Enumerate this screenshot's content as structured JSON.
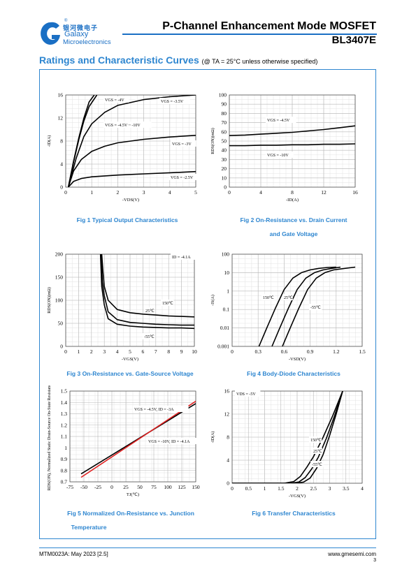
{
  "header": {
    "logo_cn": "银河微电子",
    "logo_en_1": "Galaxy",
    "logo_en_2": "Microelectronics",
    "registered": "®",
    "title": "P-Channel Enhancement Mode MOSFET",
    "part_number": "BL3407E",
    "accent_color": "#1a6fc4"
  },
  "section": {
    "title": "Ratings and Characteristic Curves",
    "note": "(@ TA = 25°C unless otherwise specified)"
  },
  "figures": [
    {
      "caption_1": "Fig 1    Typical Output Characteristics",
      "caption_2": ""
    },
    {
      "caption_1": "Fig 2    On-Resistance vs. Drain Current",
      "caption_2": "and Gate Voltage"
    },
    {
      "caption_1": "Fig 3    On-Resistance vs. Gate-Source Voltage",
      "caption_2": ""
    },
    {
      "caption_1": "Fig 4    Body-Diode Characteristics",
      "caption_2": ""
    },
    {
      "caption_1": "Fig 5    Normalized On-Resistance vs. Junction",
      "caption_2": "Temperature"
    },
    {
      "caption_1": "Fig 6    Transfer Characteristics",
      "caption_2": ""
    }
  ],
  "chart_data": [
    {
      "type": "line",
      "id": "fig1",
      "xlabel": "-VDS(V)",
      "ylabel": "-ID(A)",
      "xlim": [
        0,
        5
      ],
      "ylim": [
        0,
        16
      ],
      "xticks": [
        0,
        1,
        2,
        3,
        4,
        5
      ],
      "yticks": [
        0,
        4,
        8,
        12,
        16
      ],
      "grid": true,
      "annotations": [
        "VGS = -4V",
        "VGS = -3.5V",
        "VGS = -4.5V ~ -10V",
        "VGS = -3V",
        "VGS = -2.5V"
      ],
      "series": [
        {
          "x": [
            0.1,
            0.3,
            0.5,
            0.7,
            0.9,
            1.1
          ],
          "y": [
            0,
            4.5,
            8.5,
            12,
            14.8,
            16
          ]
        },
        {
          "x": [
            0.1,
            0.3,
            0.5,
            0.7,
            0.9,
            1.2
          ],
          "y": [
            0,
            4.3,
            8.2,
            11.5,
            14,
            16
          ]
        },
        {
          "x": [
            0.1,
            0.4,
            0.7,
            1,
            1.5,
            2,
            3,
            4,
            5
          ],
          "y": [
            0,
            5,
            8.8,
            11,
            13,
            14.2,
            15.2,
            15.7,
            16
          ]
        },
        {
          "x": [
            0.1,
            0.3,
            0.6,
            1,
            1.5,
            2,
            3,
            4,
            5
          ],
          "y": [
            0,
            2.8,
            4.8,
            6.2,
            7.1,
            7.7,
            8.3,
            8.7,
            9
          ]
        },
        {
          "x": [
            0.1,
            0.3,
            0.6,
            1,
            2,
            3,
            4,
            5
          ],
          "y": [
            0,
            1,
            1.5,
            1.8,
            2.1,
            2.3,
            2.5,
            2.7
          ]
        }
      ]
    },
    {
      "type": "line",
      "id": "fig2",
      "xlabel": "-ID(A)",
      "ylabel": "RDS(ON)(mΩ)",
      "xlim": [
        0,
        16
      ],
      "ylim": [
        0,
        100
      ],
      "xticks": [
        0,
        4,
        8,
        12,
        16
      ],
      "yticks": [
        0,
        10,
        20,
        30,
        40,
        50,
        60,
        70,
        80,
        90,
        100
      ],
      "grid": true,
      "annotations": [
        "VGS = -4.5V",
        "VGS = -10V"
      ],
      "series": [
        {
          "x": [
            0,
            2,
            4,
            6,
            8,
            10,
            12,
            14,
            16
          ],
          "y": [
            56,
            56.5,
            57.5,
            58.5,
            59.5,
            61,
            62.5,
            64.5,
            66.5
          ]
        },
        {
          "x": [
            0,
            2,
            4,
            6,
            8,
            10,
            12,
            14,
            16
          ],
          "y": [
            45,
            45,
            45.5,
            45.5,
            46,
            46,
            46.5,
            46.5,
            47
          ]
        }
      ]
    },
    {
      "type": "line",
      "id": "fig3",
      "xlabel": "-VGS(V)",
      "ylabel": "RDS(ON)(mΩ)",
      "xlim": [
        0,
        10
      ],
      "ylim": [
        0,
        200
      ],
      "xticks": [
        0,
        1,
        2,
        3,
        4,
        5,
        6,
        7,
        8,
        9,
        10
      ],
      "yticks": [
        0,
        50,
        100,
        150,
        200
      ],
      "grid": true,
      "annotations": [
        "ID = -4.1A",
        "150℃",
        "25℃",
        "-55℃"
      ],
      "series": [
        {
          "x": [
            2.8,
            2.9,
            3,
            3.3,
            4,
            5,
            6,
            7,
            8,
            9,
            10
          ],
          "y": [
            200,
            160,
            130,
            100,
            80,
            73,
            70,
            68,
            66,
            65,
            64
          ]
        },
        {
          "x": [
            2.75,
            2.85,
            3,
            3.3,
            4,
            5,
            6,
            7,
            8,
            9,
            10
          ],
          "y": [
            200,
            140,
            110,
            75,
            58,
            52,
            50,
            48,
            47,
            46,
            46
          ]
        },
        {
          "x": [
            2.7,
            2.8,
            3,
            3.3,
            4,
            5,
            6,
            7,
            8,
            9,
            10
          ],
          "y": [
            200,
            130,
            90,
            60,
            48,
            44,
            42,
            41,
            40,
            40,
            39
          ]
        }
      ]
    },
    {
      "type": "line",
      "id": "fig4",
      "xlabel": "-VSD(V)",
      "ylabel": "-IS(A)",
      "xlim": [
        0,
        1.5
      ],
      "ylim": [
        0.001,
        100
      ],
      "yscale": "log",
      "xticks": [
        0,
        0.3,
        0.6,
        0.9,
        1.2,
        1.5
      ],
      "yticks": [
        0.001,
        0.01,
        0.1,
        1,
        10,
        100
      ],
      "ytick_labels": [
        "0.001",
        "0.01",
        "0.1",
        "1",
        "10",
        "100"
      ],
      "grid": true,
      "annotations": [
        "150℃",
        "25℃",
        "-55℃"
      ],
      "series": [
        {
          "x": [
            0.31,
            0.4,
            0.5,
            0.6,
            0.7,
            0.8,
            0.9,
            1.0,
            1.1,
            1.2
          ],
          "y": [
            0.001,
            0.01,
            0.12,
            1.2,
            5,
            10,
            14,
            17,
            19,
            20
          ]
        },
        {
          "x": [
            0.46,
            0.55,
            0.65,
            0.75,
            0.85,
            0.95,
            1.05,
            1.15,
            1.25
          ],
          "y": [
            0.001,
            0.01,
            0.12,
            1.2,
            5,
            10,
            14,
            17,
            20
          ]
        },
        {
          "x": [
            0.58,
            0.67,
            0.77,
            0.87,
            0.97,
            1.07,
            1.17,
            1.3,
            1.42
          ],
          "y": [
            0.001,
            0.01,
            0.12,
            1.2,
            5,
            10,
            14,
            17,
            20
          ]
        }
      ]
    },
    {
      "type": "line",
      "id": "fig5",
      "xlabel": "TJ(℃)",
      "ylabel": "RDS(ON), Normalized Static Drain-Source On-State Resistance",
      "xlim": [
        -75,
        150
      ],
      "ylim": [
        0.7,
        1.5
      ],
      "xticks": [
        -75,
        -50,
        -25,
        0,
        25,
        50,
        75,
        100,
        125,
        150
      ],
      "yticks": [
        0.7,
        0.8,
        0.9,
        1,
        1.1,
        1.2,
        1.3,
        1.4,
        1.5
      ],
      "grid": true,
      "annotations": [
        "VGS = -4.5V, ID = -3A",
        "VGS = -10V, ID = -4.1A"
      ],
      "series": [
        {
          "x": [
            -55,
            150
          ],
          "y": [
            0.77,
            1.39
          ],
          "color": "#000000"
        },
        {
          "x": [
            -55,
            150
          ],
          "y": [
            0.74,
            1.41
          ],
          "color": "#e02020"
        }
      ]
    },
    {
      "type": "line",
      "id": "fig6",
      "xlabel": "-VGS(V)",
      "ylabel": "-ID(A)",
      "xlim": [
        0,
        4
      ],
      "ylim": [
        0,
        16
      ],
      "xticks": [
        0,
        0.5,
        1,
        1.5,
        2,
        2.5,
        3,
        3.5,
        4
      ],
      "yticks": [
        0,
        4,
        8,
        12,
        16
      ],
      "grid": true,
      "annotations": [
        "VDS = -5V",
        "150℃",
        "25℃",
        "-55℃"
      ],
      "series": [
        {
          "x": [
            0,
            1.6,
            1.9,
            2.1,
            2.3,
            2.5,
            2.8,
            3.1,
            3.4
          ],
          "y": [
            0,
            0,
            0.3,
            1.2,
            2.8,
            4.6,
            8,
            11.8,
            16
          ]
        },
        {
          "x": [
            0,
            1.8,
            2.05,
            2.25,
            2.45,
            2.65,
            2.9,
            3.15,
            3.4
          ],
          "y": [
            0,
            0,
            0.2,
            1,
            2.5,
            4.5,
            7.8,
            11.7,
            16
          ]
        },
        {
          "x": [
            0,
            1.95,
            2.2,
            2.4,
            2.6,
            2.8,
            3.0,
            3.2,
            3.4
          ],
          "y": [
            0,
            0,
            0.2,
            0.9,
            2.6,
            5,
            8.3,
            12,
            16
          ]
        }
      ]
    }
  ],
  "footer": {
    "doc_id": "MTM0023A: May 2023 [2.5]",
    "website": "www.gmesemi.com",
    "page": "3"
  }
}
